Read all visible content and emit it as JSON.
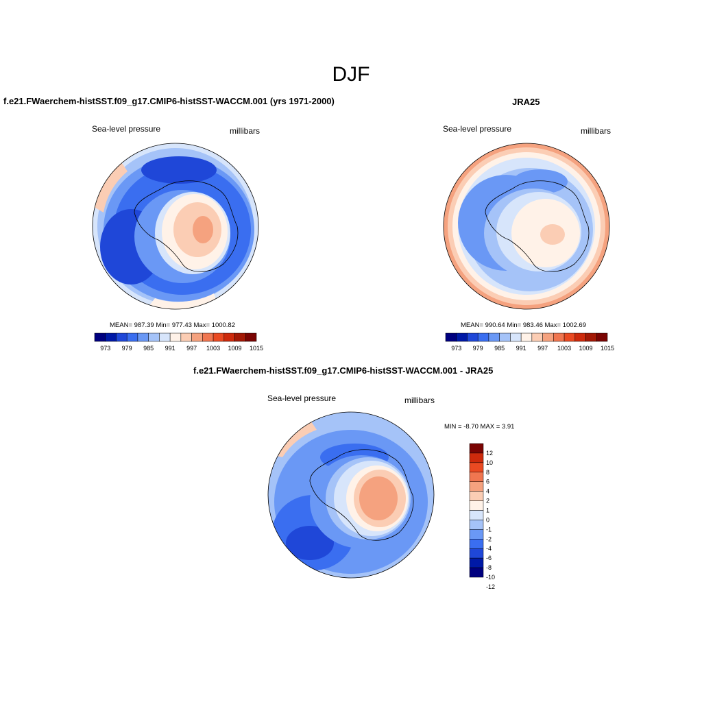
{
  "title": "DJF",
  "palette": [
    "#00007f",
    "#0019a6",
    "#1f47d8",
    "#3a6ef0",
    "#6a98f5",
    "#a5c3f8",
    "#d7e5fb",
    "#fff2e8",
    "#fbcdb4",
    "#f5a27f",
    "#f07650",
    "#ea4a22",
    "#cd2a0c",
    "#a31805",
    "#7a0403"
  ],
  "diff_palette": [
    "#00007f",
    "#0019a6",
    "#1f47d8",
    "#3a6ef0",
    "#6a98f5",
    "#a5c3f8",
    "#d7e5fb",
    "#fff2e8",
    "#fbcdb4",
    "#f5a27f",
    "#f07650",
    "#ea4a22",
    "#cd2a0c",
    "#7a0403"
  ],
  "panels": {
    "model": {
      "title": "f.e21.FWaerchem-histSST.f09_g17.CMIP6-histSST-WACCM.001 (yrs 1971-2000)",
      "variable": "Sea-level pressure",
      "units": "millibars",
      "stats": "MEAN= 987.39  Min= 977.43  Max= 1000.82",
      "mean": 987.39,
      "min": 977.43,
      "max": 1000.82,
      "colorbar_labels": [
        "973",
        "979",
        "985",
        "991",
        "997",
        "1003",
        "1009",
        "1015"
      ]
    },
    "obs": {
      "title": "JRA25",
      "variable": "Sea-level pressure",
      "units": "millibars",
      "stats": "MEAN= 990.64  Min= 983.46  Max= 1002.69",
      "mean": 990.64,
      "min": 983.46,
      "max": 1002.69,
      "colorbar_labels": [
        "973",
        "979",
        "985",
        "991",
        "997",
        "1003",
        "1009",
        "1015"
      ]
    },
    "diff": {
      "title": "f.e21.FWaerchem-histSST.f09_g17.CMIP6-histSST-WACCM.001 - JRA25",
      "variable": "Sea-level pressure",
      "units": "millibars",
      "stats": "MIN =  -8.70 MAX =   3.91",
      "min": -8.7,
      "max": 3.91,
      "colorbar_labels": [
        "12",
        "10",
        "8",
        "6",
        "4",
        "2",
        "1",
        "0",
        "-1",
        "-2",
        "-4",
        "-6",
        "-8",
        "-10",
        "-12"
      ]
    }
  }
}
